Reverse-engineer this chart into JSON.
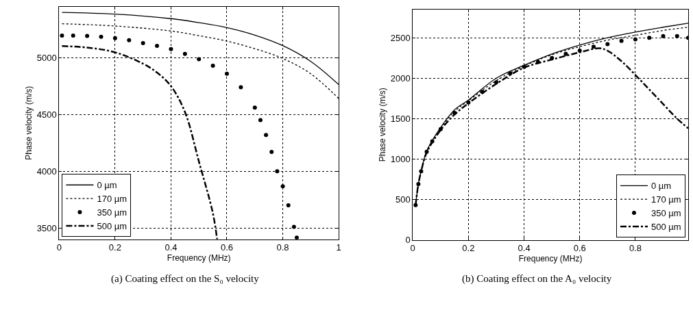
{
  "chart_data": [
    {
      "type": "line",
      "xlabel": "Frequency (MHz)",
      "ylabel": "Phase velocity (m/s)",
      "xlim": [
        0,
        1
      ],
      "ylim": [
        3400,
        5450
      ],
      "xticks": [
        0,
        0.2,
        0.4,
        0.6,
        0.8,
        1
      ],
      "yticks": [
        3500,
        4000,
        4500,
        5000
      ],
      "grid": true,
      "legend": "bottom left",
      "annotations": [
        "(a) Coating effect on the S₀ velocity"
      ],
      "series": [
        {
          "name": "0 µm",
          "color": "#000000",
          "line_style": "solid",
          "x": [
            0.01,
            0.2,
            0.4,
            0.5,
            0.6,
            0.7,
            0.8,
            0.9,
            1.0
          ],
          "values": [
            5400,
            5385,
            5345,
            5310,
            5266,
            5200,
            5107,
            4968,
            4764
          ]
        },
        {
          "name": "170 µm",
          "color": "#000000",
          "line_style": "dotted",
          "x": [
            0.01,
            0.2,
            0.4,
            0.5,
            0.6,
            0.7,
            0.8,
            0.9,
            1.0
          ],
          "values": [
            5300,
            5280,
            5236,
            5195,
            5147,
            5080,
            4994,
            4859,
            4641
          ]
        },
        {
          "name": "350 µm",
          "color": "#000000",
          "type": "scatter",
          "marker": "circle",
          "x": [
            0.01,
            0.05,
            0.1,
            0.15,
            0.2,
            0.25,
            0.3,
            0.35,
            0.4,
            0.45,
            0.5,
            0.55,
            0.6,
            0.65,
            0.7,
            0.72,
            0.74,
            0.76,
            0.78,
            0.8,
            0.82,
            0.84,
            0.85
          ],
          "values": [
            5196,
            5195,
            5192,
            5185,
            5173,
            5155,
            5130,
            5105,
            5077,
            5035,
            4988,
            4930,
            4859,
            4740,
            4561,
            4450,
            4320,
            4170,
            4000,
            3867,
            3700,
            3510,
            3415
          ]
        },
        {
          "name": "500 µm",
          "color": "#000000",
          "line_style": "dashed",
          "x": [
            0.01,
            0.1,
            0.2,
            0.3,
            0.35,
            0.4,
            0.45,
            0.5,
            0.55,
            0.565
          ],
          "values": [
            5103,
            5090,
            5048,
            4948,
            4870,
            4750,
            4522,
            4085,
            3629,
            3400
          ]
        }
      ]
    },
    {
      "type": "line",
      "xlabel": "Frequency (MHz)",
      "ylabel": "Phase velocity (m/s)",
      "xlim": [
        0,
        0.99
      ],
      "ylim": [
        0,
        2850
      ],
      "xticks": [
        0,
        0.2,
        0.4,
        0.6,
        0.8
      ],
      "yticks": [
        0,
        500,
        1000,
        1500,
        2000,
        2500
      ],
      "grid": true,
      "legend": "bottom right",
      "annotations": [
        "(b) Coating effect on the A₀ velocity"
      ],
      "series": [
        {
          "name": "0 µm",
          "color": "#000000",
          "line_style": "solid",
          "x": [
            0.01,
            0.02,
            0.03,
            0.05,
            0.1,
            0.15,
            0.2,
            0.3,
            0.4,
            0.5,
            0.6,
            0.7,
            0.8,
            0.9,
            0.99
          ],
          "values": [
            430,
            690,
            850,
            1100,
            1390,
            1610,
            1730,
            2000,
            2160,
            2300,
            2410,
            2500,
            2570,
            2630,
            2680
          ]
        },
        {
          "name": "170 µm",
          "color": "#000000",
          "line_style": "dotted",
          "x": [
            0.01,
            0.02,
            0.03,
            0.05,
            0.1,
            0.15,
            0.2,
            0.3,
            0.4,
            0.5,
            0.6,
            0.7,
            0.8,
            0.9,
            0.99
          ],
          "values": [
            430,
            690,
            850,
            1100,
            1380,
            1590,
            1720,
            1970,
            2150,
            2290,
            2390,
            2470,
            2530,
            2590,
            2630
          ]
        },
        {
          "name": "350 µm",
          "color": "#000000",
          "type": "scatter",
          "marker": "circle",
          "x": [
            0.01,
            0.02,
            0.03,
            0.05,
            0.07,
            0.1,
            0.15,
            0.2,
            0.25,
            0.3,
            0.35,
            0.4,
            0.45,
            0.5,
            0.55,
            0.6,
            0.65,
            0.7,
            0.75,
            0.8,
            0.85,
            0.9,
            0.95,
            0.99
          ],
          "values": [
            430,
            690,
            850,
            1090,
            1220,
            1370,
            1570,
            1700,
            1830,
            1950,
            2060,
            2140,
            2200,
            2250,
            2300,
            2340,
            2390,
            2420,
            2460,
            2480,
            2500,
            2520,
            2520,
            2500
          ]
        },
        {
          "name": "500 µm",
          "color": "#000000",
          "line_style": "dashed",
          "x": [
            0.01,
            0.02,
            0.03,
            0.05,
            0.1,
            0.15,
            0.2,
            0.3,
            0.4,
            0.5,
            0.6,
            0.67,
            0.7,
            0.75,
            0.8,
            0.85,
            0.9,
            0.95,
            0.99
          ],
          "values": [
            430,
            690,
            850,
            1080,
            1360,
            1550,
            1690,
            1930,
            2130,
            2230,
            2320,
            2370,
            2340,
            2210,
            2040,
            1860,
            1680,
            1500,
            1380
          ]
        }
      ]
    }
  ]
}
